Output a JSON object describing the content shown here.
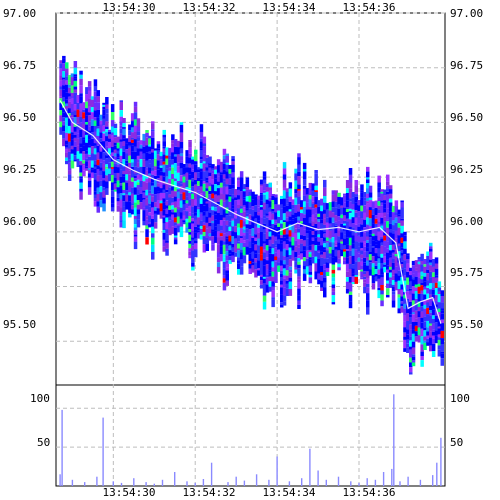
{
  "chart_data": [
    {
      "type": "heatmap",
      "title": "",
      "xlabel": "",
      "ylabel": "",
      "x_ticks": [
        "13:54:30",
        "13:54:32",
        "13:54:34",
        "13:54:36"
      ],
      "x_tick_seconds": [
        30,
        32,
        34,
        36
      ],
      "xlim_seconds": [
        28.6,
        38.1
      ],
      "y_ticks": [
        "97.00",
        "96.75",
        "96.50",
        "96.25",
        "96.00",
        "95.75",
        "95.50"
      ],
      "ylim": [
        95.3,
        97.0
      ],
      "grid": true,
      "colors": [
        "#0000ff",
        "#3333ff",
        "#6a2cff",
        "#8a2be2",
        "#9b30ff",
        "#00ffff",
        "#00e0ff",
        "#33ff66",
        "#00ff7f",
        "#ff0000",
        "#ffffff",
        "#1e90ff"
      ],
      "price_line": {
        "color": "#ffffff",
        "x_seconds": [
          28.7,
          29.0,
          29.5,
          30.0,
          30.5,
          31.0,
          31.5,
          32.0,
          32.5,
          33.0,
          33.5,
          34.0,
          34.5,
          35.0,
          35.5,
          36.0,
          36.5,
          36.9,
          37.2,
          37.5,
          37.8,
          38.0
        ],
        "y": [
          96.6,
          96.5,
          96.44,
          96.33,
          96.28,
          96.24,
          96.21,
          96.18,
          96.13,
          96.08,
          96.04,
          96.0,
          96.04,
          96.01,
          96.02,
          96.0,
          96.02,
          95.95,
          95.65,
          95.68,
          95.7,
          95.58
        ]
      }
    },
    {
      "type": "bar",
      "title": "",
      "xlabel": "",
      "ylabel": "",
      "color": "#8a8aff",
      "y_ticks": [
        "100",
        "50"
      ],
      "ylim": [
        0,
        130
      ],
      "xlim_seconds": [
        28.6,
        38.1
      ],
      "x_seconds": [
        28.7,
        28.75,
        29.0,
        29.3,
        29.6,
        29.75,
        30.0,
        30.2,
        30.5,
        30.8,
        31.0,
        31.2,
        31.5,
        31.8,
        32.0,
        32.2,
        32.4,
        32.8,
        33.0,
        33.2,
        33.5,
        33.8,
        34.0,
        34.3,
        34.6,
        34.8,
        35.0,
        35.2,
        35.5,
        35.8,
        36.0,
        36.2,
        36.4,
        36.6,
        36.8,
        36.85,
        37.0,
        37.2,
        37.5,
        37.8,
        37.9,
        38.0
      ],
      "values": [
        15,
        98,
        8,
        5,
        12,
        88,
        6,
        4,
        10,
        5,
        3,
        8,
        18,
        6,
        4,
        9,
        30,
        5,
        12,
        7,
        15,
        8,
        38,
        6,
        10,
        48,
        20,
        8,
        12,
        6,
        4,
        10,
        8,
        18,
        22,
        118,
        6,
        12,
        8,
        14,
        30,
        62
      ]
    }
  ]
}
